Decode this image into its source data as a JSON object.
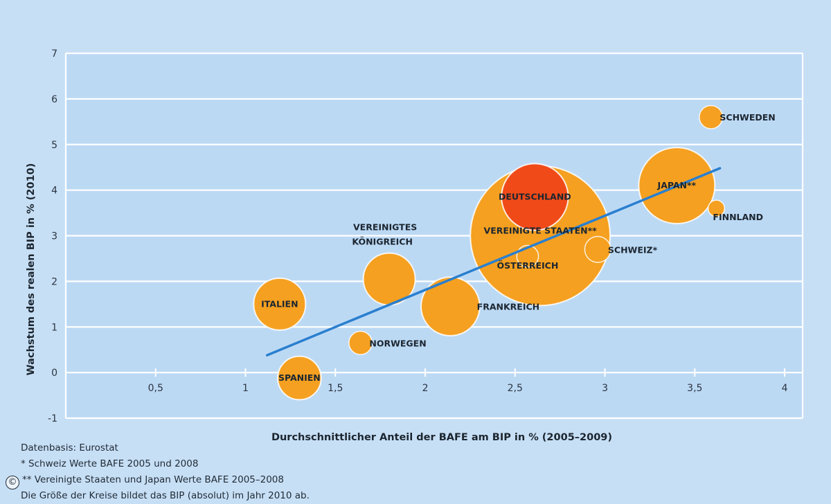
{
  "chart_data": {
    "type": "scatter",
    "subtype": "bubble",
    "xlabel": "Durchschnittlicher Anteil der BAFE am BIP in % (2005–2009)",
    "ylabel": "Wachstum des realen BIP in % (2010)",
    "xlim": [
      0.0,
      4.1
    ],
    "ylim": [
      -1,
      7
    ],
    "xticks": [
      0.5,
      1,
      1.5,
      2,
      2.5,
      3,
      3.5,
      4
    ],
    "xtick_labels": [
      "0,5",
      "1",
      "1,5",
      "2",
      "2,5",
      "3",
      "3,5",
      "4"
    ],
    "yticks": [
      -1,
      0,
      1,
      2,
      3,
      4,
      5,
      6,
      7
    ],
    "ytick_labels": [
      "-1",
      "0",
      "1",
      "2",
      "3",
      "4",
      "5",
      "6",
      "7"
    ],
    "grid": "horizontal",
    "points": [
      {
        "label": "SCHWEDEN",
        "x": 3.59,
        "y": 5.6,
        "size": 0.4,
        "color": "#f5a020",
        "label_pos": "right"
      },
      {
        "label": "JAPAN**",
        "x": 3.4,
        "y": 4.1,
        "size": 4.3,
        "color": "#f5a020",
        "label_pos": "center"
      },
      {
        "label": "FINNLAND",
        "x": 3.62,
        "y": 3.6,
        "size": 0.2,
        "color": "#f5a020",
        "label_pos": "below-right"
      },
      {
        "label": "VEREINIGTE STAATEN**",
        "x": 2.64,
        "y": 3.0,
        "size": 14.5,
        "color": "#f5a020",
        "label_pos": "center"
      },
      {
        "label": "DEUTSCHLAND",
        "x": 2.61,
        "y": 3.85,
        "size": 3.3,
        "color": "#f04a18",
        "label_pos": "center"
      },
      {
        "label": "ÖSTERREICH",
        "x": 2.57,
        "y": 2.55,
        "size": 0.35,
        "color": "#f5a020",
        "label_pos": "center"
      },
      {
        "label": "SCHWEIZ*",
        "x": 2.96,
        "y": 2.7,
        "size": 0.5,
        "color": "#f5a020",
        "label_pos": "right"
      },
      {
        "label": "VEREINIGTES KÖNIGREICH",
        "x": 1.8,
        "y": 2.05,
        "size": 2.0,
        "color": "#f5a020",
        "label_pos": "above"
      },
      {
        "label": "FRANKREICH",
        "x": 2.14,
        "y": 1.45,
        "size": 2.55,
        "color": "#f5a020",
        "label_pos": "right"
      },
      {
        "label": "ITALIEN",
        "x": 1.19,
        "y": 1.5,
        "size": 2.0,
        "color": "#f5a020",
        "label_pos": "center"
      },
      {
        "label": "NORWEGEN",
        "x": 1.64,
        "y": 0.65,
        "size": 0.4,
        "color": "#f5a020",
        "label_pos": "right"
      },
      {
        "label": "SPANIEN",
        "x": 1.3,
        "y": -0.12,
        "size": 1.4,
        "color": "#f5a020",
        "label_pos": "center"
      }
    ],
    "trendline": {
      "x": [
        1.12,
        3.64
      ],
      "y": [
        0.38,
        4.48
      ],
      "color": "#2a7fcf"
    }
  },
  "notes": [
    "Datenbasis: Eurostat",
    "* Schweiz Werte BAFE 2005 und 2008",
    "** Vereinigte Staaten und Japan Werte BAFE  2005–2008",
    "Die Größe der Kreise bildet das BIP (absolut) im Jahr 2010 ab."
  ],
  "copyright_symbol": "©",
  "colors": {
    "background": "#c7dff5",
    "plot_area": "#bcd9f4",
    "bubble": "#f5a020",
    "highlight": "#f04a18",
    "trendline": "#2a7fcf"
  }
}
